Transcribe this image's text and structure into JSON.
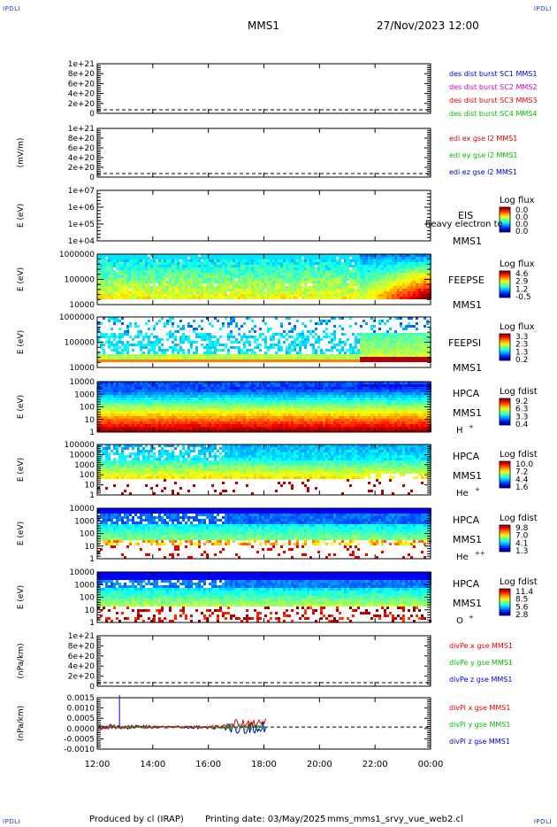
{
  "corners": {
    "top_left": "IPDLI",
    "top_right": "IPDLI",
    "bottom_left": "IPDLI",
    "bottom_right": "IPDLI"
  },
  "header": {
    "mission": "MMS1",
    "datetime": "27/Nov/2023 12:00"
  },
  "footer": {
    "produced_by": "Produced by cl (IRAP)",
    "printing_date": "Printing date: 03/May/2025",
    "script_name": "mms_mms1_srvy_vue_web2.cl"
  },
  "colors": {
    "jet_low": "#0000a0",
    "jet_high": "#a00000",
    "series_blue": "#0000cc",
    "series_magenta": "#cc00cc",
    "series_red": "#dd0000",
    "series_green": "#00bb00"
  },
  "chart_data": [
    {
      "type": "line",
      "ylabel": "",
      "yticks": [
        "0",
        "2e+20",
        "4e+20",
        "6e+20",
        "8e+20",
        "1e+21"
      ],
      "legend": [
        {
          "text": "des dist burst SC1 MMS1",
          "color": "#0000cc"
        },
        {
          "text": "des dist burst SC2 MMS2",
          "color": "#cc00cc"
        },
        {
          "text": "des dist burst SC3 MMS3",
          "color": "#dd0000"
        },
        {
          "text": "des dist burst SC4 MMS4",
          "color": "#00bb00"
        }
      ]
    },
    {
      "type": "line",
      "ylabel": "(mV/m)",
      "yticks": [
        "0",
        "2e+20",
        "4e+20",
        "6e+20",
        "8e+20",
        "1e+21"
      ],
      "legend": [
        {
          "text": "edi ex gse l2 MMS1",
          "color": "#dd0000"
        },
        {
          "text": "edi ey gse l2 MMS1",
          "color": "#00bb00"
        },
        {
          "text": "edi ez gse l2 MMS1",
          "color": "#0000cc"
        }
      ]
    },
    {
      "type": "heatmap",
      "ylabel": "E (eV)",
      "yticks": [
        "1e+04",
        "1e+05",
        "1e+06",
        "1e+07"
      ],
      "instrument": "EIS",
      "sub": "MMS1",
      "overlay": "heavy electron to",
      "cb_title": "Log flux",
      "cb_ticks": [
        "0.0",
        "0.0",
        "0.0",
        "0.0"
      ],
      "fill": "none"
    },
    {
      "type": "heatmap",
      "ylabel": "E (eV)",
      "yticks": [
        "10000",
        "100000",
        "1000000"
      ],
      "instrument": "FEEPSE",
      "sub": "MMS1",
      "cb_title": "Log flux",
      "cb_ticks": [
        "4.6",
        "2.9",
        "1.2",
        "-0.5"
      ],
      "fill": "feepse"
    },
    {
      "type": "heatmap",
      "ylabel": "E (eV)",
      "yticks": [
        "10000",
        "100000",
        "1000000"
      ],
      "instrument": "FEEPSI",
      "sub": "MMS1",
      "cb_title": "Log flux",
      "cb_ticks": [
        "3.3",
        "2.3",
        "1.3",
        "0.2"
      ],
      "fill": "feepsi"
    },
    {
      "type": "heatmap",
      "ylabel": "E (eV)",
      "yticks": [
        "1",
        "10",
        "100",
        "1000",
        "10000"
      ],
      "instrument": "HPCA",
      "sub": "MMS1",
      "species": "H",
      "species_sup": "+",
      "cb_title": "Log fdist",
      "cb_ticks": [
        "9.2",
        "6.3",
        "3.3",
        "0.4"
      ],
      "fill": "hplus"
    },
    {
      "type": "heatmap",
      "ylabel": "E (eV)",
      "yticks": [
        "1",
        "10",
        "100",
        "1000",
        "10000",
        "100000"
      ],
      "instrument": "HPCA",
      "sub": "MMS1",
      "species": "He",
      "species_sup": "+",
      "cb_title": "Log fdist",
      "cb_ticks": [
        "10.0",
        "7.2",
        "4.4",
        "1.6"
      ],
      "fill": "heplus"
    },
    {
      "type": "heatmap",
      "ylabel": "E (eV)",
      "yticks": [
        "1",
        "10",
        "100",
        "1000",
        "10000"
      ],
      "instrument": "HPCA",
      "sub": "MMS1",
      "species": "He",
      "species_sup": "++",
      "cb_title": "Log fdist",
      "cb_ticks": [
        "9.8",
        "7.0",
        "4.1",
        "1.3"
      ],
      "fill": "hepp"
    },
    {
      "type": "heatmap",
      "ylabel": "E (eV)",
      "yticks": [
        "1",
        "10",
        "100",
        "1000",
        "10000"
      ],
      "instrument": "HPCA",
      "sub": "MMS1",
      "species": "O",
      "species_sup": "+",
      "cb_title": "Log fdist",
      "cb_ticks": [
        "11.4",
        "8.5",
        "5.6",
        "2.8"
      ],
      "fill": "oplus"
    },
    {
      "type": "line",
      "ylabel": "(nPa/km)",
      "yticks": [
        "0",
        "2e+20",
        "4e+20",
        "6e+20",
        "8e+20",
        "1e+21"
      ],
      "legend": [
        {
          "text": "divPe x gse MMS1",
          "color": "#dd0000"
        },
        {
          "text": "divPe y gse MMS1",
          "color": "#00bb00"
        },
        {
          "text": "divPe z gse MMS1",
          "color": "#0000cc"
        }
      ]
    },
    {
      "type": "line",
      "ylabel": "(nPa/km)",
      "yticks": [
        "-0.0010",
        "-0.0005",
        "0.0000",
        "0.0005",
        "0.0010",
        "0.0015"
      ],
      "ylim": [
        -0.0012,
        0.0016
      ],
      "legend": [
        {
          "text": "divPi x gse MMS1",
          "color": "#dd0000"
        },
        {
          "text": "divPi y gse MMS1",
          "color": "#00bb00"
        },
        {
          "text": "divPi z gse MMS1",
          "color": "#0000cc"
        }
      ],
      "data_end_hour": 18.1
    }
  ],
  "xaxis": {
    "ticks": [
      "12:00",
      "14:00",
      "16:00",
      "18:00",
      "20:00",
      "22:00",
      "00:00"
    ],
    "range_hours": [
      12,
      24
    ]
  }
}
